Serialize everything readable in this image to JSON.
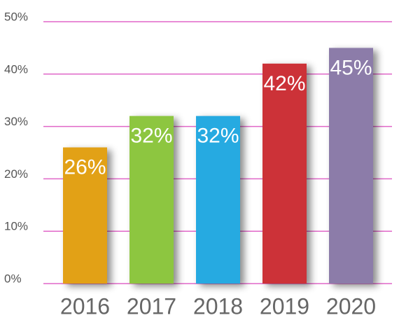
{
  "chart_data": {
    "type": "bar",
    "categories": [
      "2016",
      "2017",
      "2018",
      "2019",
      "2020"
    ],
    "values": [
      26,
      32,
      32,
      42,
      45
    ],
    "value_labels": [
      "26%",
      "32%",
      "32%",
      "42%",
      "45%"
    ],
    "colors": [
      "#e2a113",
      "#8dc63f",
      "#27aae1",
      "#cc3337",
      "#8c7ba9"
    ],
    "grid_color": "#e067c8",
    "ylim": [
      0,
      50
    ],
    "yticks": [
      {
        "value": 0,
        "label": "0%"
      },
      {
        "value": 10,
        "label": "10%"
      },
      {
        "value": 20,
        "label": "20%"
      },
      {
        "value": 30,
        "label": "30%"
      },
      {
        "value": 40,
        "label": "40%"
      },
      {
        "value": 50,
        "label": "50%"
      }
    ],
    "grid": true
  }
}
